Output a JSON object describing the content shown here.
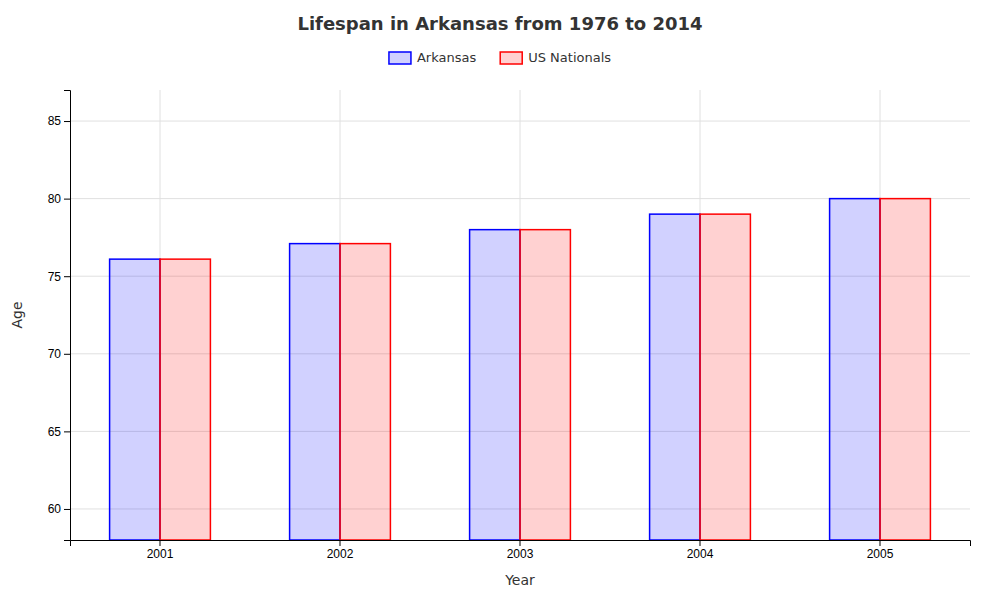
{
  "chart_data": {
    "type": "bar",
    "title": "Lifespan in Arkansas from 1976 to 2014",
    "xlabel": "Year",
    "ylabel": "Age",
    "categories": [
      "2001",
      "2002",
      "2003",
      "2004",
      "2005"
    ],
    "series": [
      {
        "name": "Arkansas",
        "color": "#0000ff",
        "values": [
          76.1,
          77.1,
          78.0,
          79.0,
          80.0
        ]
      },
      {
        "name": "US Nationals",
        "color": "#ff0000",
        "values": [
          76.1,
          77.1,
          78.0,
          79.0,
          80.0
        ]
      }
    ],
    "ylim": [
      58,
      87
    ],
    "yticks": [
      60,
      65,
      70,
      75,
      80,
      85
    ],
    "grid": true,
    "legend": "top"
  }
}
